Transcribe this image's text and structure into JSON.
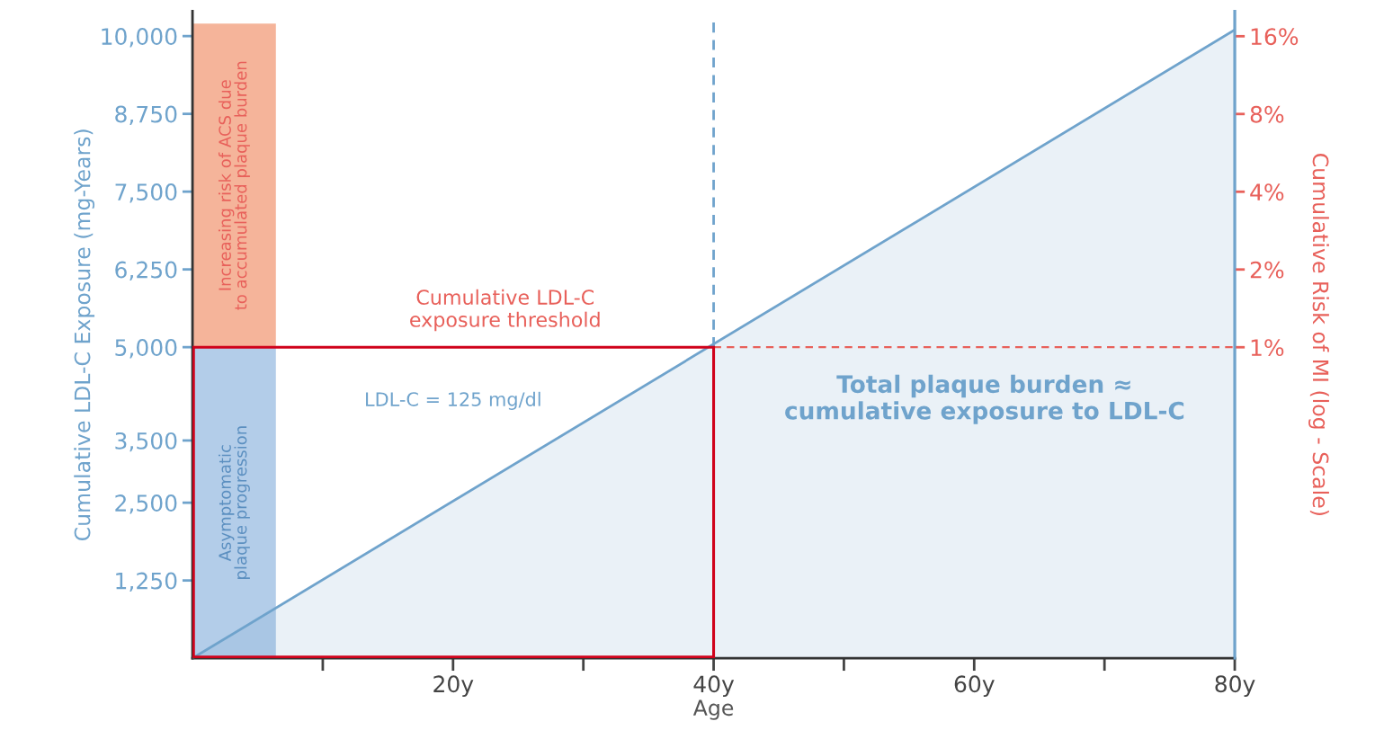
{
  "chart_data": {
    "type": "area",
    "xlabel": "Age",
    "ylabel": "Cumulative LDL-C Exposure (mg-Years)",
    "y2label": "Cumulative Risk of MI (log - Scale)",
    "x": [
      0,
      80
    ],
    "series": [
      {
        "name": "LDL-C = 125 mg/dl",
        "color": "#6fa3cc",
        "values": [
          0,
          10100
        ]
      }
    ],
    "xlim": [
      0,
      80
    ],
    "xticks": [
      {
        "value": 10,
        "label": null
      },
      {
        "value": 20,
        "label": "20y"
      },
      {
        "value": 30,
        "label": null
      },
      {
        "value": 40,
        "label": "40y"
      },
      {
        "value": 50,
        "label": null
      },
      {
        "value": 60,
        "label": "60y"
      },
      {
        "value": 70,
        "label": null
      },
      {
        "value": 80,
        "label": "80y"
      }
    ],
    "ylim": [
      0,
      10400
    ],
    "yticks": [
      {
        "value": 1250,
        "label": "1,250"
      },
      {
        "value": 2500,
        "label": "2,500"
      },
      {
        "value": 3500,
        "label": "3,500"
      },
      {
        "value": 5000,
        "label": "5,000"
      },
      {
        "value": 6250,
        "label": "6,250"
      },
      {
        "value": 7500,
        "label": "7,500"
      },
      {
        "value": 8750,
        "label": "8,750"
      },
      {
        "value": 10000,
        "label": "10,000"
      }
    ],
    "log": "y2",
    "y2lim": [
      0.0625,
      20
    ],
    "y2ticks": [
      {
        "value": 1,
        "label": "1%"
      },
      {
        "value": 2,
        "label": "2%"
      },
      {
        "value": 4,
        "label": "4%"
      },
      {
        "value": 8,
        "label": "8%"
      },
      {
        "value": 16,
        "label": "16%"
      }
    ],
    "ref_lines": [
      {
        "axis": "x",
        "value": 40,
        "color": "#6fa3cc",
        "line_style": "dashed"
      },
      {
        "axis": "y",
        "value": 5000,
        "label": "Cumulative LDL-C exposure threshold",
        "color": "#e8605a",
        "line_style": "dashed"
      }
    ],
    "bands": [
      {
        "axis": "x",
        "from": 0,
        "to": 6.4,
        "label": "Asymptomatic plaque progression",
        "color": "#b3cde9"
      },
      {
        "axis": "x",
        "from": 0,
        "to": 6.4,
        "label": "Increasing risk of ACS due to accumulated plaque burden",
        "color": "#f5b49a"
      }
    ],
    "annotations": [
      "Total plaque burden ≈ cumulative exposure to LDL-C"
    ],
    "grid": false,
    "legend": false
  }
}
